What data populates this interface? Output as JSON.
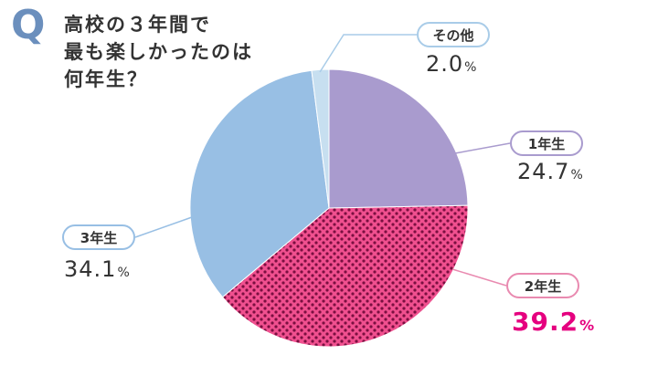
{
  "question": {
    "mark": "Q",
    "lines": [
      "高校の３年間で",
      "最も楽しかったのは",
      "何年生？"
    ]
  },
  "chart_data": {
    "type": "pie",
    "title": "高校の３年間で最も楽しかったのは何年生？",
    "slices": [
      {
        "label": "1年生",
        "value": 24.7,
        "value_text": "24.7",
        "unit": "%",
        "color": "#a99bce"
      },
      {
        "label": "2年生",
        "value": 39.2,
        "value_text": "39.2",
        "unit": "%",
        "color": "#f0508f",
        "pattern": "dots",
        "highlight": true
      },
      {
        "label": "3年生",
        "value": 34.1,
        "value_text": "34.1",
        "unit": "%",
        "color": "#98bfe4"
      },
      {
        "label": "その他",
        "value": 2.0,
        "value_text": "2.0",
        "unit": "%",
        "color": "#c7dff0"
      }
    ],
    "highlight_color": "#e5007f"
  }
}
